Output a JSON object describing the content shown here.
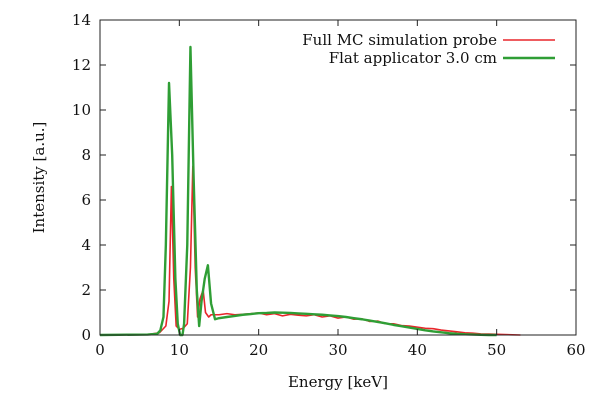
{
  "chart_data": {
    "type": "line",
    "title": "",
    "xlabel": "Energy [keV]",
    "ylabel": "Intensity [a.u.]",
    "xlim": [
      0,
      60
    ],
    "ylim": [
      0,
      14
    ],
    "xticks": [
      0,
      10,
      20,
      30,
      40,
      50,
      60
    ],
    "yticks": [
      0,
      2,
      4,
      6,
      8,
      10,
      12,
      14
    ],
    "x_tick_labels": [
      "0",
      "10",
      "20",
      "30",
      "40",
      "50",
      "60"
    ],
    "y_tick_labels": [
      "0",
      "2",
      "4",
      "6",
      "8",
      "10",
      "12",
      "14"
    ],
    "grid": false,
    "legend": {
      "position": "top-right"
    },
    "series": [
      {
        "name": "Full MC simulation probe",
        "color": "#e8262b",
        "x": [
          0,
          6,
          7.5,
          8.3,
          8.7,
          9.0,
          9.3,
          9.6,
          10.0,
          10.5,
          11.0,
          11.4,
          11.7,
          12.0,
          12.3,
          12.6,
          13.0,
          13.3,
          13.7,
          14.0,
          15,
          16,
          17,
          18,
          19,
          20,
          21,
          22,
          23,
          24,
          25,
          26,
          27,
          28,
          29,
          30,
          31,
          32,
          33,
          34,
          35,
          36,
          37,
          38,
          39,
          40,
          41,
          42,
          43,
          44,
          45,
          46,
          47,
          48,
          49,
          50,
          51,
          52,
          53
        ],
        "y": [
          0,
          0.02,
          0.1,
          0.4,
          1.5,
          6.6,
          2.5,
          0.4,
          0.25,
          0.3,
          0.5,
          3.0,
          7.5,
          3.0,
          0.8,
          1.6,
          2.0,
          1.0,
          0.8,
          0.9,
          0.9,
          0.95,
          0.9,
          0.92,
          0.95,
          0.98,
          0.9,
          0.95,
          0.85,
          0.92,
          0.88,
          0.85,
          0.9,
          0.8,
          0.85,
          0.75,
          0.8,
          0.7,
          0.72,
          0.6,
          0.62,
          0.5,
          0.5,
          0.42,
          0.4,
          0.35,
          0.3,
          0.28,
          0.22,
          0.18,
          0.14,
          0.1,
          0.08,
          0.05,
          0.04,
          0.03,
          0.02,
          0.01,
          0
        ]
      },
      {
        "name": "Flat applicator 3.0 cm",
        "color": "#2f9e35",
        "x": [
          0,
          6,
          7.2,
          7.6,
          8.0,
          8.3,
          8.7,
          9.1,
          9.5,
          9.8,
          10.1,
          10.4,
          10.6,
          11.0,
          11.4,
          11.8,
          12.2,
          12.5,
          12.8,
          13.2,
          13.6,
          14.0,
          14.5,
          15,
          16,
          17,
          18,
          19,
          20,
          21,
          22,
          23,
          24,
          25,
          26,
          27,
          28,
          29,
          30,
          31,
          32,
          33,
          34,
          35,
          36,
          37,
          38,
          39,
          40,
          41,
          42,
          43,
          44,
          45,
          46,
          47,
          48,
          49,
          50
        ],
        "y": [
          0,
          0.02,
          0.05,
          0.2,
          0.8,
          4.0,
          11.2,
          8.0,
          2.5,
          0.5,
          0.0,
          0.0,
          0.5,
          4.0,
          12.8,
          7.0,
          2.0,
          0.4,
          1.5,
          2.5,
          3.1,
          1.4,
          0.7,
          0.75,
          0.8,
          0.85,
          0.9,
          0.93,
          0.97,
          0.98,
          1.0,
          0.99,
          0.98,
          0.96,
          0.94,
          0.92,
          0.9,
          0.87,
          0.84,
          0.8,
          0.75,
          0.7,
          0.64,
          0.58,
          0.52,
          0.45,
          0.39,
          0.33,
          0.27,
          0.21,
          0.16,
          0.12,
          0.08,
          0.05,
          0.03,
          0.02,
          0.01,
          0.0,
          0
        ]
      }
    ]
  }
}
